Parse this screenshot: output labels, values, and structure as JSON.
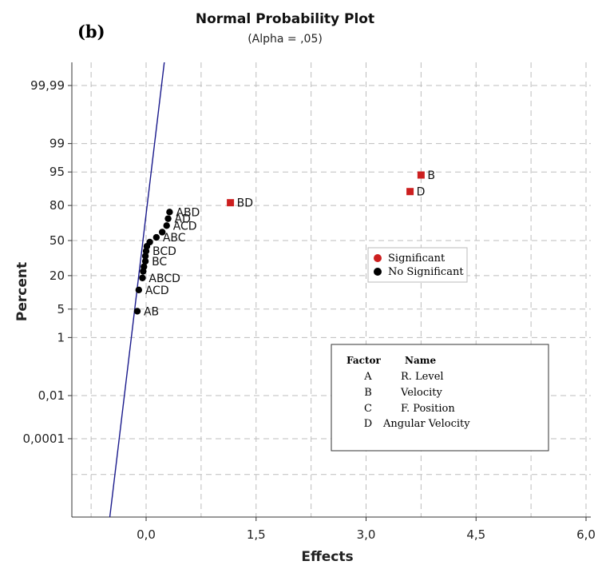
{
  "panel_label": "(b)",
  "chart_data": {
    "type": "scatter",
    "title": "Normal Probability Plot",
    "subtitle": "(Alpha = ,05)",
    "xlabel": "Effects",
    "ylabel": "Percent",
    "xlim": [
      -0.6,
      6.0
    ],
    "x_ticks": [
      "0,0",
      "1,5",
      "3,0",
      "4,5",
      "6,0"
    ],
    "x_tick_values": [
      0.0,
      1.5,
      3.0,
      4.5,
      6.0
    ],
    "y_ticks": [
      "99,99",
      "99",
      "95",
      "80",
      "50",
      "20",
      "5",
      "1",
      "0,01",
      "0,0001"
    ],
    "y_tick_values": [
      99.99,
      99,
      95,
      80,
      50,
      20,
      5,
      1,
      0.01,
      0.0001
    ],
    "grid": true,
    "scale": "normal-probability",
    "reference_line": {
      "x": [
        -0.5,
        0.35
      ],
      "percent": [
        1e-09,
        100
      ],
      "color": "#1a1a8c"
    },
    "series": [
      {
        "name": "Significant",
        "color": "#cc1f1f",
        "marker": "square",
        "points": [
          {
            "label": "B",
            "x": 3.75,
            "y": 94.2
          },
          {
            "label": "D",
            "x": 3.6,
            "y": 88.0
          },
          {
            "label": "BD",
            "x": 1.15,
            "y": 81.8
          }
        ]
      },
      {
        "name": "No Significant",
        "color": "#000000",
        "marker": "circle",
        "points": [
          {
            "label": "ABD",
            "x": 0.32,
            "y": 75.3
          },
          {
            "label": "AD",
            "x": 0.3,
            "y": 70.0
          },
          {
            "label": "ACD",
            "x": 0.28,
            "y": 64.0
          },
          {
            "label": "",
            "x": 0.22,
            "y": 58.0
          },
          {
            "label": "ABC",
            "x": 0.14,
            "y": 53.0
          },
          {
            "label": "",
            "x": 0.05,
            "y": 48.5
          },
          {
            "label": "",
            "x": 0.01,
            "y": 44.5
          },
          {
            "label": "BCD",
            "x": 0.0,
            "y": 40.0
          },
          {
            "label": "",
            "x": -0.01,
            "y": 35.5
          },
          {
            "label": "BC",
            "x": -0.01,
            "y": 31.0
          },
          {
            "label": "",
            "x": -0.03,
            "y": 26.5
          },
          {
            "label": "",
            "x": -0.04,
            "y": 23.0
          },
          {
            "label": "ABCD",
            "x": -0.05,
            "y": 18.5
          },
          {
            "label": "ACD",
            "x": -0.1,
            "y": 11.8
          },
          {
            "label": "AB",
            "x": -0.12,
            "y": 4.5
          }
        ]
      }
    ],
    "legend": {
      "position": "right",
      "items": [
        {
          "label": "Significant",
          "color": "#cc1f1f"
        },
        {
          "label": "No Significant",
          "color": "#000000"
        }
      ]
    },
    "factor_table": {
      "headers": [
        "Factor",
        "Name"
      ],
      "rows": [
        [
          "A",
          "R. Level"
        ],
        [
          "B",
          "Velocity"
        ],
        [
          "C",
          "F. Position"
        ],
        [
          "D",
          "Angular Velocity"
        ]
      ]
    }
  }
}
